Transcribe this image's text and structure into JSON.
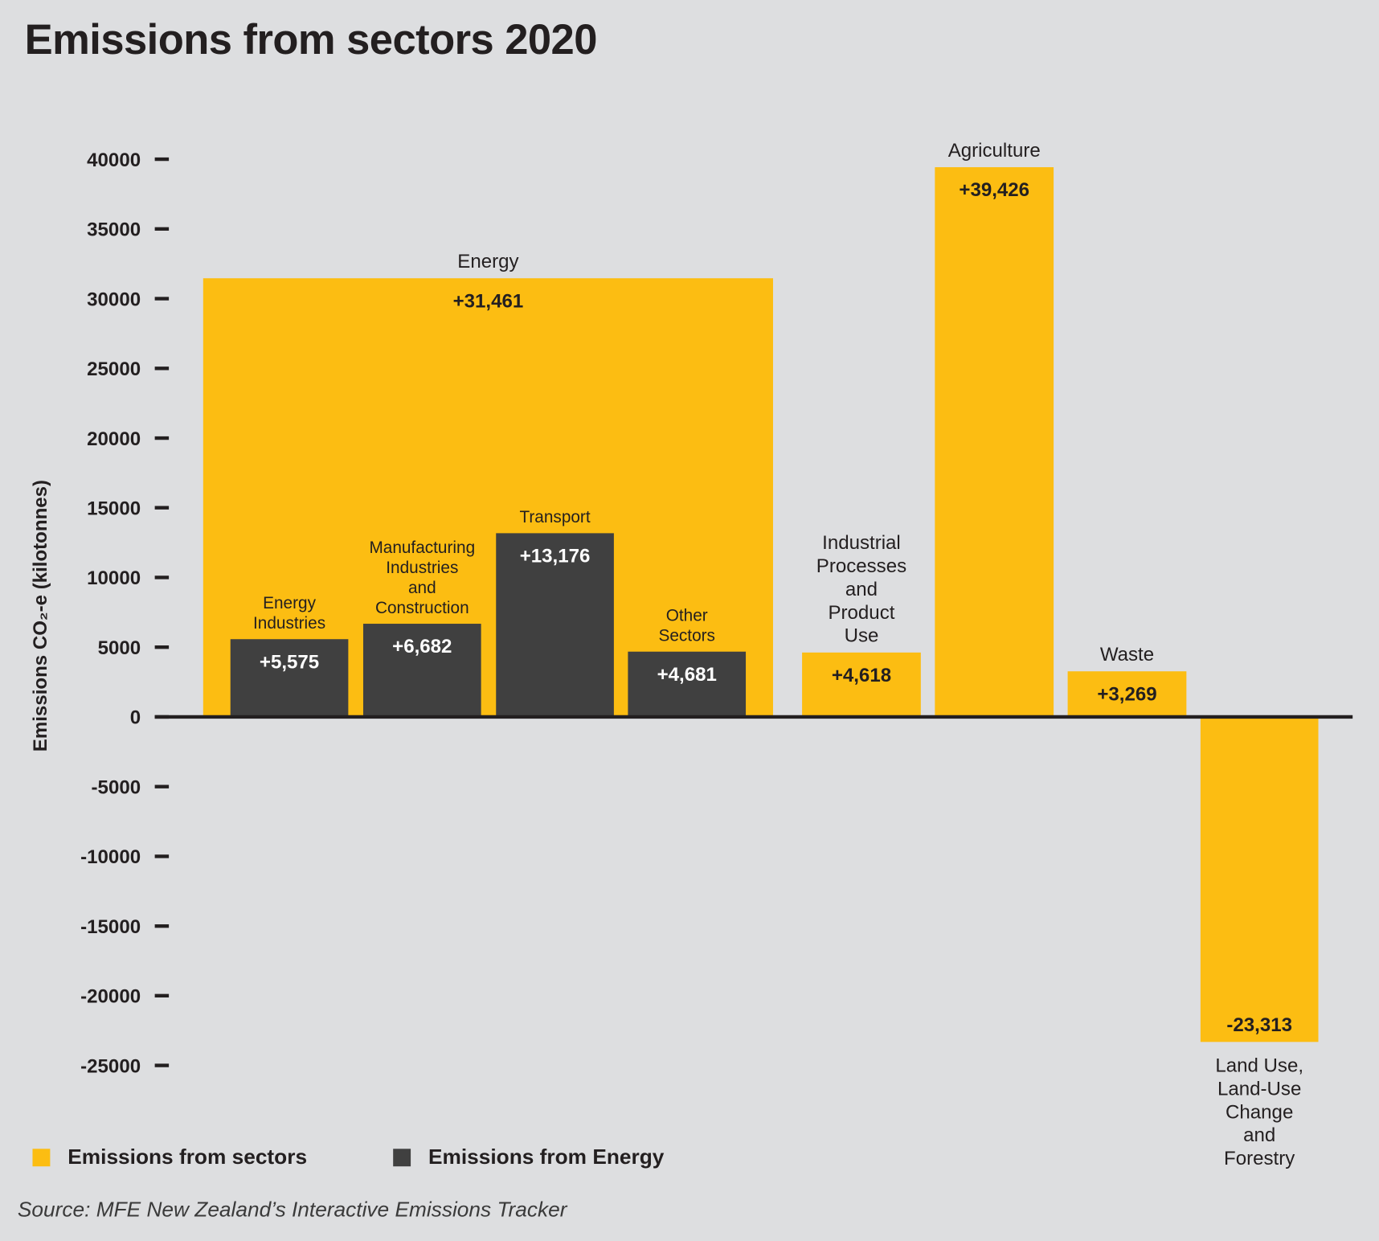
{
  "title": "Emissions from sectors 2020",
  "source": "Source: MFE New Zealand’s Interactive Emissions Tracker",
  "colors": {
    "sectors": "#fcbd12",
    "energy": "#404040",
    "background": "#dddee0",
    "text": "#231f20"
  },
  "legend": [
    {
      "label": "Emissions from sectors",
      "color": "#fcbd12"
    },
    {
      "label": "Emissions from Energy",
      "color": "#404040"
    }
  ],
  "chart_data": {
    "type": "bar",
    "title": "Emissions from sectors 2020",
    "ylabel": "Emissions CO₂-e (kilotonnes)",
    "xlabel": "",
    "ylim": [
      -25000,
      40000
    ],
    "yticks": [
      40000,
      35000,
      30000,
      25000,
      20000,
      15000,
      10000,
      5000,
      0,
      -5000,
      -10000,
      -15000,
      -20000,
      -25000
    ],
    "grid": false,
    "legend_position": "bottom-left",
    "series": [
      {
        "name": "Emissions from sectors",
        "color": "#fcbd12",
        "bars": [
          {
            "category": [
              "Energy"
            ],
            "value": 31461,
            "label": "+31,461"
          },
          {
            "category": [
              "Industrial",
              "Processes",
              "and",
              "Product",
              "Use"
            ],
            "value": 4618,
            "label": "+4,618"
          },
          {
            "category": [
              "Agriculture"
            ],
            "value": 39426,
            "label": "+39,426"
          },
          {
            "category": [
              "Waste"
            ],
            "value": 3269,
            "label": "+3,269"
          },
          {
            "category": [
              "Land Use,",
              "Land-Use",
              "Change",
              "and",
              "Forestry"
            ],
            "value": -23313,
            "label": "-23,313"
          }
        ]
      },
      {
        "name": "Emissions from Energy",
        "color": "#404040",
        "bars": [
          {
            "category": [
              "Energy",
              "Industries"
            ],
            "value": 5575,
            "label": "+5,575"
          },
          {
            "category": [
              "Manufacturing",
              "Industries",
              "and",
              "Construction"
            ],
            "value": 6682,
            "label": "+6,682"
          },
          {
            "category": [
              "Transport"
            ],
            "value": 13176,
            "label": "+13,176"
          },
          {
            "category": [
              "Other",
              "Sectors"
            ],
            "value": 4681,
            "label": "+4,681"
          }
        ]
      }
    ]
  }
}
